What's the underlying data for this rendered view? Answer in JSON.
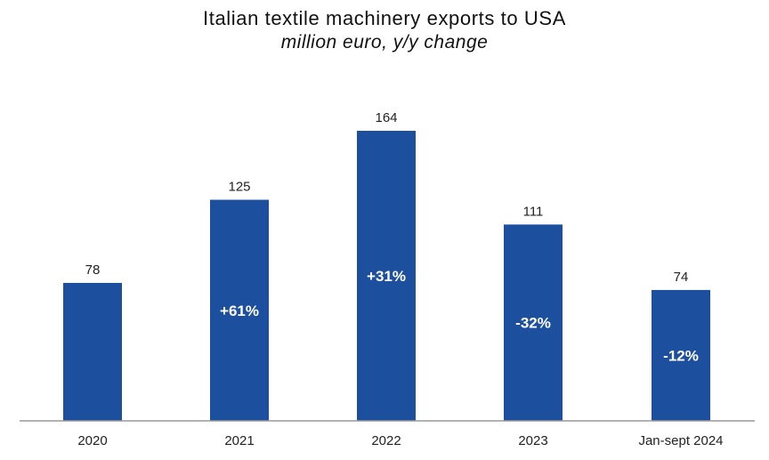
{
  "chart_data": {
    "type": "bar",
    "title": "Italian textile machinery exports to USA",
    "subtitle": "million euro, y/y change",
    "categories": [
      "2020",
      "2021",
      "2022",
      "2023",
      "Jan-sept 2024"
    ],
    "values": [
      78,
      125,
      164,
      111,
      74
    ],
    "value_labels": [
      "78",
      "125",
      "164",
      "111",
      "74"
    ],
    "change_labels": [
      "",
      "+61%",
      "+31%",
      "-32%",
      "-12%"
    ],
    "xlabel": "",
    "ylabel": "",
    "ylim": [
      0,
      164
    ],
    "grid": false,
    "legend": "none",
    "colors": {
      "bar": "#1d4f9f",
      "axis": "#9a9a9a"
    }
  }
}
